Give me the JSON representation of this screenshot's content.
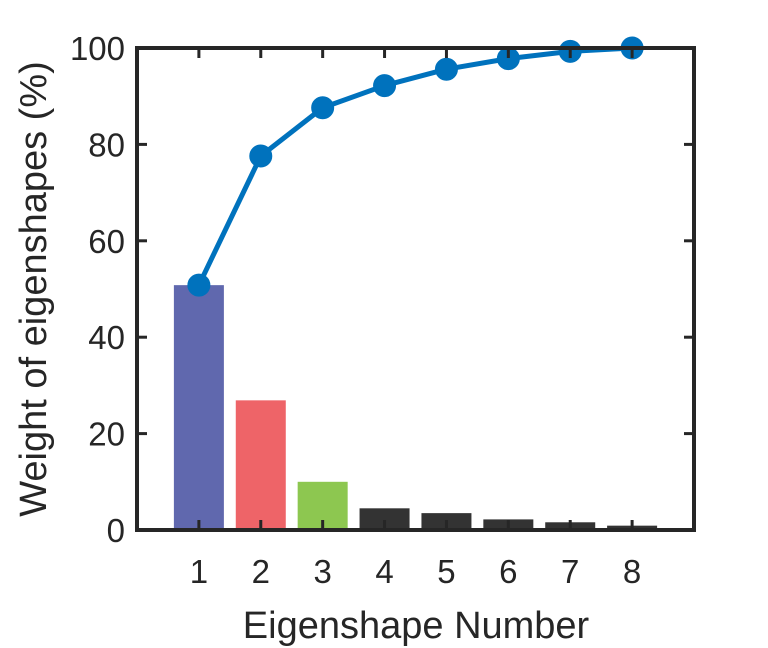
{
  "chart_data": {
    "type": "bar",
    "title": "",
    "xlabel": "Eigenshape Number",
    "ylabel": "Weight of eigenshapes (%)",
    "categories": [
      "1",
      "2",
      "3",
      "4",
      "5",
      "6",
      "7",
      "8"
    ],
    "ylim": [
      0,
      100
    ],
    "xlim": [
      0,
      9
    ],
    "y_ticks": [
      "0",
      "20",
      "40",
      "60",
      "80",
      "100"
    ],
    "x_ticks": [
      "1",
      "2",
      "3",
      "4",
      "5",
      "6",
      "7",
      "8"
    ],
    "grid": false,
    "legend": "none",
    "series": [
      {
        "type": "bar",
        "values": [
          50.8,
          26.9,
          10.0,
          4.5,
          3.5,
          2.2,
          1.6,
          0.9
        ],
        "colors": [
          "#6068ae",
          "#ee6468",
          "#8dc750",
          "#333333",
          "#333333",
          "#333333",
          "#333333",
          "#333333"
        ]
      },
      {
        "type": "line",
        "values": [
          50.8,
          77.6,
          87.6,
          92.2,
          95.6,
          97.8,
          99.3,
          100.0
        ],
        "color": "#0072bd",
        "marker": "circle"
      }
    ]
  }
}
